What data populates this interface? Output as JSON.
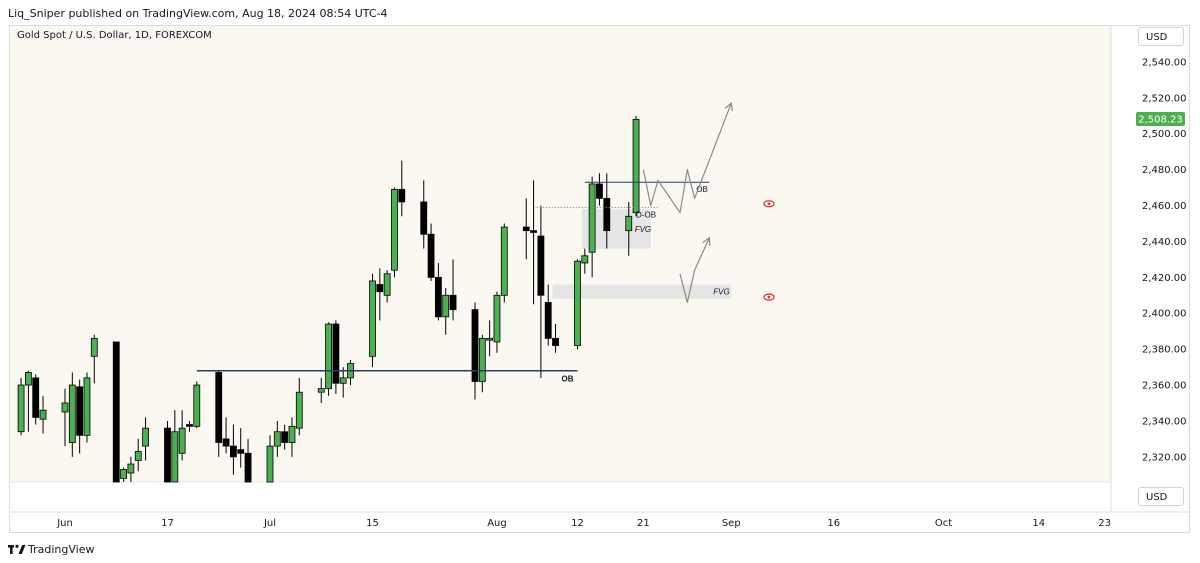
{
  "header": {
    "published": "Liq_Sniper published on TradingView.com, Aug 18, 2024 08:54 UTC-4"
  },
  "symbol": {
    "title": "Gold Spot / U.S. Dollar, 1D, FOREXCOM"
  },
  "currency": {
    "top": "USD",
    "bottom": "USD"
  },
  "footer": {
    "brand": "TradingView"
  },
  "colors": {
    "up": "#4caf50",
    "down": "#000000",
    "background": "#fbf8f2",
    "last_price_bg": "#4caf50",
    "ob_line": "#2a3a6b",
    "zone": "#e5e5e5",
    "eye": "#e53935"
  },
  "chart_data": {
    "type": "candlestick",
    "symbol": "XAUUSD",
    "timeframe": "1D",
    "ylim": [
      2306,
      2560
    ],
    "y_ticks": [
      2320,
      2340,
      2360,
      2380,
      2400,
      2420,
      2440,
      2460,
      2480,
      2500,
      2520,
      2540
    ],
    "y_tick_labels": [
      "2,320.00",
      "2,340.00",
      "2,360.00",
      "2,380.00",
      "2,400.00",
      "2,420.00",
      "2,440.00",
      "2,460.00",
      "2,480.00",
      "2,500.00",
      "2,520.00",
      "2,540.00"
    ],
    "x_labels": [
      {
        "label": "Jun",
        "date": "2024-06-03"
      },
      {
        "label": "17",
        "date": "2024-06-17"
      },
      {
        "label": "Jul",
        "date": "2024-07-01"
      },
      {
        "label": "15",
        "date": "2024-07-15"
      },
      {
        "label": "Aug",
        "date": "2024-08-01"
      },
      {
        "label": "12",
        "date": "2024-08-12"
      },
      {
        "label": "21",
        "date": "2024-08-21"
      },
      {
        "label": "Sep",
        "date": "2024-09-02"
      },
      {
        "label": "16",
        "date": "2024-09-16"
      },
      {
        "label": "Oct",
        "date": "2024-10-01"
      },
      {
        "label": "14",
        "date": "2024-10-14"
      },
      {
        "label": "23",
        "date": "2024-10-23"
      }
    ],
    "last_price": {
      "value": 2508.23,
      "label": "2,508.23"
    },
    "candles": [
      {
        "d": "2024-05-28",
        "o": 2334,
        "h": 2364,
        "l": 2332,
        "c": 2360
      },
      {
        "d": "2024-05-29",
        "o": 2360,
        "h": 2368,
        "l": 2334,
        "c": 2367
      },
      {
        "d": "2024-05-30",
        "o": 2364,
        "h": 2366,
        "l": 2338,
        "c": 2342
      },
      {
        "d": "2024-05-31",
        "o": 2341,
        "h": 2354,
        "l": 2333,
        "c": 2346
      },
      {
        "d": "2024-06-03",
        "o": 2345,
        "h": 2358,
        "l": 2326,
        "c": 2350
      },
      {
        "d": "2024-06-04",
        "o": 2328,
        "h": 2367,
        "l": 2320,
        "c": 2360
      },
      {
        "d": "2024-06-05",
        "o": 2359,
        "h": 2363,
        "l": 2322,
        "c": 2332
      },
      {
        "d": "2024-06-06",
        "o": 2332,
        "h": 2367,
        "l": 2328,
        "c": 2364
      },
      {
        "d": "2024-06-07",
        "o": 2376,
        "h": 2388,
        "l": 2361,
        "c": 2386
      },
      {
        "d": "2024-06-10",
        "o": 2384,
        "h": 2384,
        "l": 2306,
        "c": 2306
      },
      {
        "d": "2024-06-11",
        "o": 2308,
        "h": 2314,
        "l": 2306,
        "c": 2313
      },
      {
        "d": "2024-06-12",
        "o": 2311,
        "h": 2320,
        "l": 2306,
        "c": 2316
      },
      {
        "d": "2024-06-13",
        "o": 2318,
        "h": 2330,
        "l": 2312,
        "c": 2323
      },
      {
        "d": "2024-06-14",
        "o": 2326,
        "h": 2342,
        "l": 2318,
        "c": 2336
      },
      {
        "d": "2024-06-17",
        "o": 2336,
        "h": 2340,
        "l": 2306,
        "c": 2306
      },
      {
        "d": "2024-06-18",
        "o": 2306,
        "h": 2346,
        "l": 2306,
        "c": 2334
      },
      {
        "d": "2024-06-19",
        "o": 2322,
        "h": 2346,
        "l": 2318,
        "c": 2336
      },
      {
        "d": "2024-06-20",
        "o": 2338,
        "h": 2340,
        "l": 2334,
        "c": 2337
      },
      {
        "d": "2024-06-21",
        "o": 2337,
        "h": 2362,
        "l": 2336,
        "c": 2360
      },
      {
        "d": "2024-06-24",
        "o": 2367,
        "h": 2368,
        "l": 2320,
        "c": 2328
      },
      {
        "d": "2024-06-25",
        "o": 2330,
        "h": 2342,
        "l": 2322,
        "c": 2326
      },
      {
        "d": "2024-06-26",
        "o": 2326,
        "h": 2338,
        "l": 2310,
        "c": 2320
      },
      {
        "d": "2024-06-27",
        "o": 2324,
        "h": 2336,
        "l": 2314,
        "c": 2322
      },
      {
        "d": "2024-06-28",
        "o": 2322,
        "h": 2330,
        "l": 2306,
        "c": 2306
      },
      {
        "d": "2024-07-01",
        "o": 2306,
        "h": 2332,
        "l": 2306,
        "c": 2326
      },
      {
        "d": "2024-07-02",
        "o": 2326,
        "h": 2340,
        "l": 2320,
        "c": 2334
      },
      {
        "d": "2024-07-03",
        "o": 2334,
        "h": 2338,
        "l": 2324,
        "c": 2328
      },
      {
        "d": "2024-07-04",
        "o": 2328,
        "h": 2342,
        "l": 2320,
        "c": 2337
      },
      {
        "d": "2024-07-05",
        "o": 2336,
        "h": 2364,
        "l": 2332,
        "c": 2356
      },
      {
        "d": "2024-07-08",
        "o": 2356,
        "h": 2364,
        "l": 2350,
        "c": 2358
      },
      {
        "d": "2024-07-09",
        "o": 2358,
        "h": 2395,
        "l": 2354,
        "c": 2394
      },
      {
        "d": "2024-07-10",
        "o": 2394,
        "h": 2396,
        "l": 2355,
        "c": 2361
      },
      {
        "d": "2024-07-11",
        "o": 2361,
        "h": 2370,
        "l": 2353,
        "c": 2364
      },
      {
        "d": "2024-07-12",
        "o": 2364,
        "h": 2374,
        "l": 2360,
        "c": 2372
      },
      {
        "d": "2024-07-15",
        "o": 2376,
        "h": 2422,
        "l": 2370,
        "c": 2418
      },
      {
        "d": "2024-07-16",
        "o": 2416,
        "h": 2425,
        "l": 2396,
        "c": 2412
      },
      {
        "d": "2024-07-17",
        "o": 2410,
        "h": 2424,
        "l": 2406,
        "c": 2422
      },
      {
        "d": "2024-07-18",
        "o": 2424,
        "h": 2470,
        "l": 2420,
        "c": 2469
      },
      {
        "d": "2024-07-19",
        "o": 2469,
        "h": 2485,
        "l": 2454,
        "c": 2462
      },
      {
        "d": "2024-07-22",
        "o": 2462,
        "h": 2474,
        "l": 2436,
        "c": 2444
      },
      {
        "d": "2024-07-23",
        "o": 2444,
        "h": 2450,
        "l": 2418,
        "c": 2420
      },
      {
        "d": "2024-07-24",
        "o": 2420,
        "h": 2428,
        "l": 2396,
        "c": 2398
      },
      {
        "d": "2024-07-25",
        "o": 2398,
        "h": 2414,
        "l": 2388,
        "c": 2410
      },
      {
        "d": "2024-07-26",
        "o": 2410,
        "h": 2430,
        "l": 2396,
        "c": 2402
      },
      {
        "d": "2024-07-29",
        "o": 2402,
        "h": 2406,
        "l": 2352,
        "c": 2362
      },
      {
        "d": "2024-07-30",
        "o": 2362,
        "h": 2388,
        "l": 2356,
        "c": 2386
      },
      {
        "d": "2024-07-31",
        "o": 2385,
        "h": 2396,
        "l": 2376,
        "c": 2386
      },
      {
        "d": "2024-08-01",
        "o": 2384,
        "h": 2412,
        "l": 2378,
        "c": 2410
      },
      {
        "d": "2024-08-02",
        "o": 2410,
        "h": 2450,
        "l": 2406,
        "c": 2448
      },
      {
        "d": "2024-08-05",
        "o": 2448,
        "h": 2464,
        "l": 2430,
        "c": 2446
      },
      {
        "d": "2024-08-06",
        "o": 2446,
        "h": 2474,
        "l": 2405,
        "c": 2445
      },
      {
        "d": "2024-08-07",
        "o": 2443,
        "h": 2460,
        "l": 2364,
        "c": 2410
      },
      {
        "d": "2024-08-08",
        "o": 2406,
        "h": 2416,
        "l": 2382,
        "c": 2386
      },
      {
        "d": "2024-08-09",
        "o": 2386,
        "h": 2394,
        "l": 2378,
        "c": 2382
      },
      {
        "d": "2024-08-12",
        "o": 2382,
        "h": 2430,
        "l": 2380,
        "c": 2429
      },
      {
        "d": "2024-08-13",
        "o": 2428,
        "h": 2436,
        "l": 2422,
        "c": 2432
      },
      {
        "d": "2024-08-14",
        "o": 2434,
        "h": 2476,
        "l": 2420,
        "c": 2472
      },
      {
        "d": "2024-08-15",
        "o": 2472,
        "h": 2478,
        "l": 2460,
        "c": 2464
      },
      {
        "d": "2024-08-16",
        "o": 2464,
        "h": 2478,
        "l": 2436,
        "c": 2446
      },
      {
        "d": "2024-08-19",
        "o": 2446,
        "h": 2462,
        "l": 2432,
        "c": 2454
      },
      {
        "d": "2024-08-20",
        "o": 2456,
        "h": 2510,
        "l": 2454,
        "c": 2508
      }
    ],
    "annotations": {
      "ob_lower": {
        "label": "OB",
        "price": 2368,
        "from": "2024-06-21",
        "to": "2024-08-12"
      },
      "ob_upper": {
        "label": "OB",
        "price": 2473,
        "from": "2024-08-13",
        "to": "2024-08-30"
      },
      "d_ob": {
        "label": "D-OB",
        "price": 2459,
        "from": "2024-08-06",
        "to": "2024-08-23"
      },
      "fvg_upper": {
        "label": "FVG",
        "top": 2458,
        "bottom": 2436,
        "from": "2024-08-13",
        "to": "2024-08-22"
      },
      "fvg_lower": {
        "label": "FVG",
        "top": 2416,
        "bottom": 2408,
        "from": "2024-08-09",
        "to": "2024-09-02"
      },
      "path_upper": [
        [
          "2024-08-21",
          2480
        ],
        [
          "2024-08-22",
          2460
        ],
        [
          "2024-08-23",
          2474
        ],
        [
          "2024-08-26",
          2456
        ],
        [
          "2024-08-27",
          2480
        ],
        [
          "2024-08-28",
          2464
        ],
        [
          "2024-09-02",
          2517
        ]
      ],
      "path_lower": [
        [
          "2024-08-26",
          2422
        ],
        [
          "2024-08-27",
          2406
        ],
        [
          "2024-08-28",
          2424
        ],
        [
          "2024-08-30",
          2442
        ]
      ],
      "eye_markers": [
        {
          "price": 2461
        },
        {
          "price": 2409
        }
      ]
    }
  }
}
